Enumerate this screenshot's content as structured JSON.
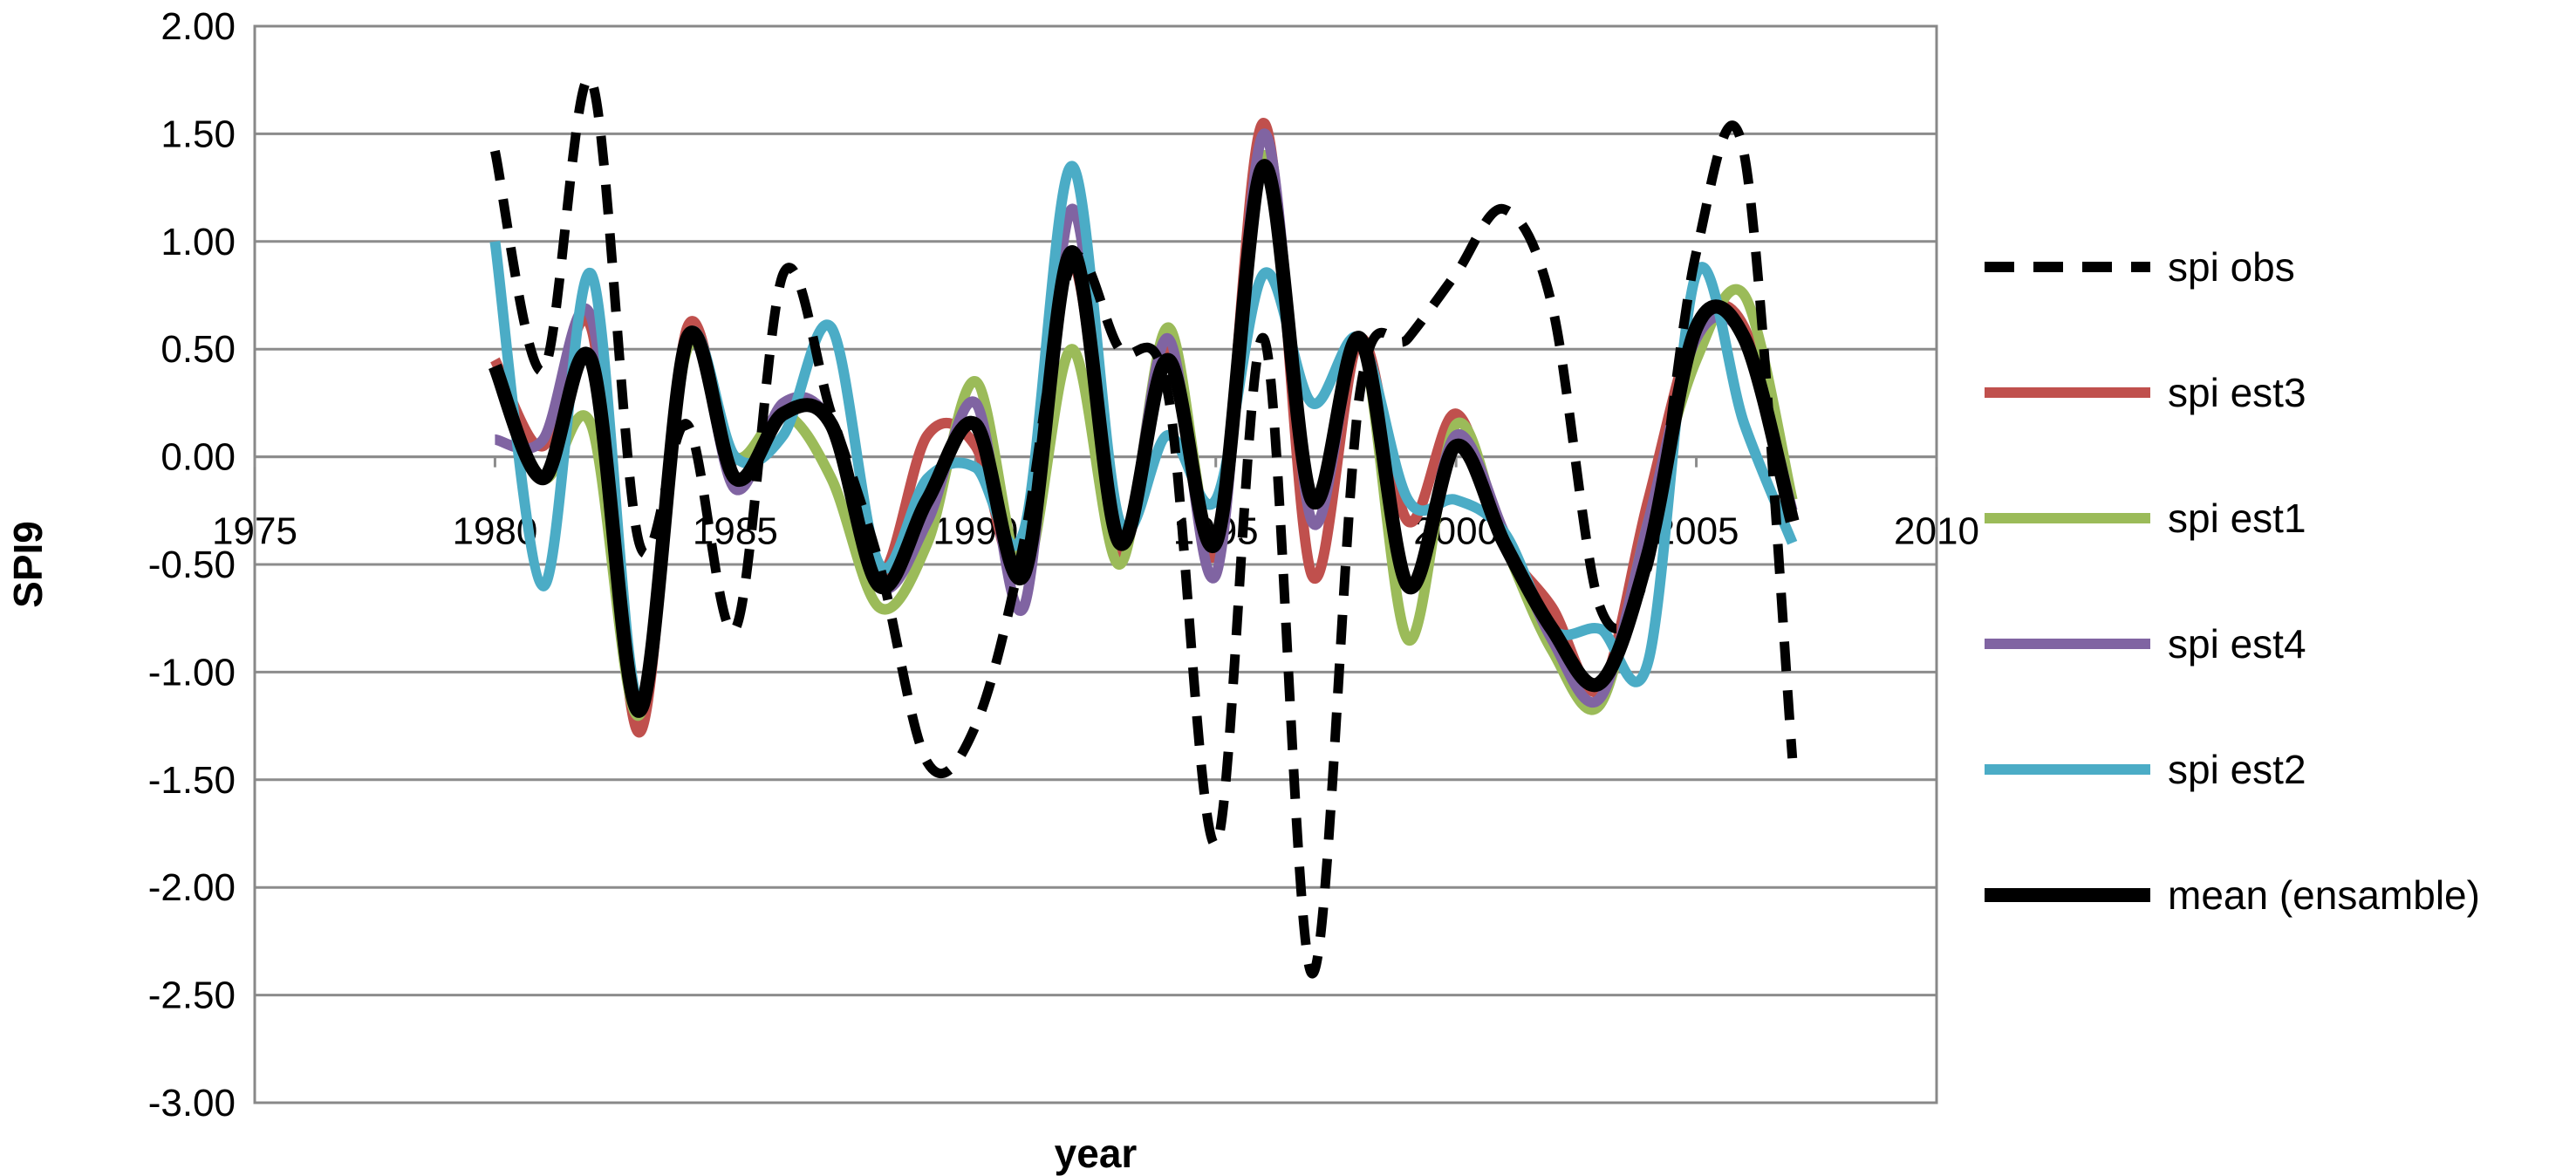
{
  "chart_data": {
    "type": "line",
    "xlabel": "year",
    "ylabel": "SPI9",
    "xlim": [
      1975,
      2010
    ],
    "ylim": [
      -3.0,
      2.0
    ],
    "x_ticks": [
      "1975",
      "1980",
      "1985",
      "1990",
      "1995",
      "2000",
      "2005",
      "2010"
    ],
    "y_ticks": [
      "2.00",
      "1.50",
      "1.00",
      "0.50",
      "0.00",
      "-0.50",
      "-1.00",
      "-1.50",
      "-2.00",
      "-2.50",
      "-3.00"
    ],
    "grid": true,
    "legend_position": "right",
    "x": [
      1980,
      1981,
      1982,
      1983,
      1984,
      1985,
      1986,
      1987,
      1988,
      1989,
      1990,
      1991,
      1992,
      1993,
      1994,
      1995,
      1996,
      1997,
      1998,
      1999,
      2000,
      2001,
      2002,
      2003,
      2004,
      2005,
      2006,
      2007
    ],
    "series": [
      {
        "name": "spi obs",
        "color": "#000000",
        "dashed": true,
        "values": [
          1.42,
          0.4,
          1.75,
          -0.4,
          0.15,
          -0.8,
          0.85,
          0.2,
          -0.5,
          -1.42,
          -1.25,
          -0.4,
          0.9,
          0.5,
          0.3,
          -1.8,
          0.55,
          -2.4,
          0.3,
          0.55,
          0.85,
          1.15,
          0.7,
          -0.7,
          -0.5,
          0.95,
          1.4,
          -1.4
        ]
      },
      {
        "name": "spi est3",
        "color": "#C0504D",
        "dashed": false,
        "values": [
          0.45,
          0.05,
          0.6,
          -1.28,
          0.6,
          -0.1,
          0.2,
          0.15,
          -0.55,
          0.1,
          0.05,
          -0.55,
          0.9,
          -0.45,
          0.5,
          -0.45,
          1.55,
          -0.55,
          0.55,
          -0.3,
          0.2,
          -0.4,
          -0.7,
          -1.08,
          -0.2,
          0.6,
          0.6,
          -0.3
        ]
      },
      {
        "name": "spi est1",
        "color": "#9BBB59",
        "dashed": false,
        "values": [
          0.4,
          -0.1,
          0.15,
          -1.2,
          0.5,
          0.0,
          0.2,
          -0.1,
          -0.7,
          -0.4,
          0.35,
          -0.55,
          0.5,
          -0.5,
          0.6,
          -0.4,
          1.4,
          -0.2,
          0.55,
          -0.85,
          0.15,
          -0.4,
          -0.9,
          -1.15,
          -0.3,
          0.45,
          0.75,
          -0.2
        ]
      },
      {
        "name": "spi est4",
        "color": "#8064A2",
        "dashed": false,
        "values": [
          0.08,
          0.08,
          0.65,
          -1.15,
          0.55,
          -0.15,
          0.25,
          0.15,
          -0.6,
          -0.3,
          0.25,
          -0.7,
          1.15,
          -0.4,
          0.55,
          -0.55,
          1.5,
          -0.3,
          0.55,
          -0.6,
          0.1,
          -0.35,
          -0.85,
          -1.12,
          -0.3,
          0.55,
          0.55,
          -0.25
        ]
      },
      {
        "name": "spi est2",
        "color": "#4BACC6",
        "dashed": false,
        "values": [
          1.0,
          -0.6,
          0.85,
          -1.15,
          0.55,
          0.0,
          0.1,
          0.6,
          -0.5,
          -0.1,
          -0.05,
          -0.35,
          1.35,
          -0.3,
          0.1,
          -0.2,
          0.85,
          0.25,
          0.55,
          -0.2,
          -0.2,
          -0.35,
          -0.8,
          -0.8,
          -0.95,
          0.85,
          0.15,
          -0.4
        ]
      },
      {
        "name": "mean (ensamble)",
        "color": "#000000",
        "dashed": false,
        "values": [
          0.42,
          -0.1,
          0.45,
          -1.18,
          0.55,
          -0.1,
          0.2,
          0.15,
          -0.6,
          -0.2,
          0.15,
          -0.55,
          0.95,
          -0.4,
          0.45,
          -0.4,
          1.35,
          -0.2,
          0.55,
          -0.6,
          0.05,
          -0.4,
          -0.8,
          -1.05,
          -0.45,
          0.6,
          0.55,
          -0.3
        ]
      }
    ]
  }
}
